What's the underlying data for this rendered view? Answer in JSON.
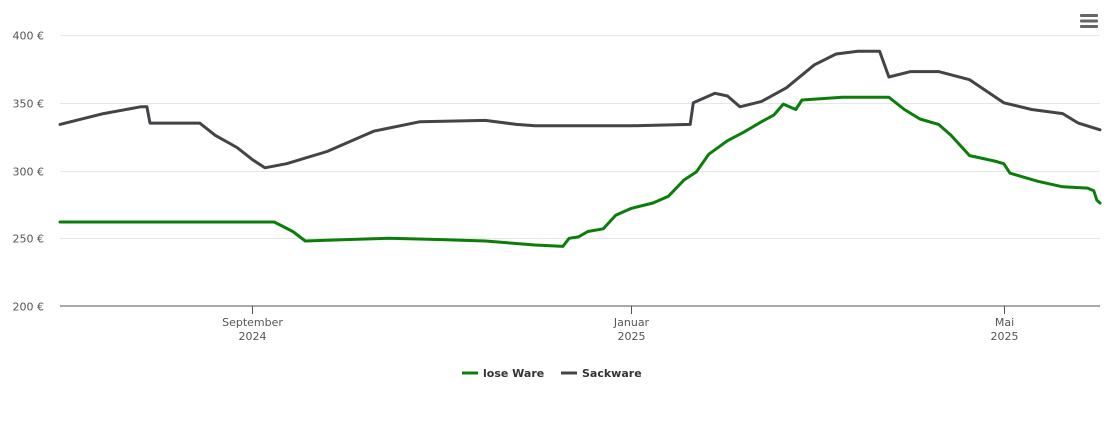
{
  "chart_data": {
    "type": "line",
    "ylim": [
      200,
      400
    ],
    "yticks": [
      200,
      250,
      300,
      350,
      400
    ],
    "ytick_labels": [
      "200 €",
      "250 €",
      "300 €",
      "350 €",
      "400 €"
    ],
    "xlim": [
      "2024-07-01",
      "2025-06-01"
    ],
    "xticks": [
      {
        "date": "2024-09-01",
        "month": "September",
        "year": "2024"
      },
      {
        "date": "2025-01-01",
        "month": "Januar",
        "year": "2025"
      },
      {
        "date": "2025-05-01",
        "month": "Mai",
        "year": "2025"
      }
    ],
    "grid": true,
    "legend_position": "bottom-center",
    "series": [
      {
        "name": "lose Ware",
        "color": "#0a7d0a",
        "points": [
          [
            "2024-07-01",
            262
          ],
          [
            "2024-08-01",
            262
          ],
          [
            "2024-09-01",
            262
          ],
          [
            "2024-09-08",
            262
          ],
          [
            "2024-09-14",
            255
          ],
          [
            "2024-09-18",
            248
          ],
          [
            "2024-10-01",
            249
          ],
          [
            "2024-10-15",
            250
          ],
          [
            "2024-11-01",
            249
          ],
          [
            "2024-11-15",
            248
          ],
          [
            "2024-12-01",
            245
          ],
          [
            "2024-12-10",
            244
          ],
          [
            "2024-12-12",
            250
          ],
          [
            "2024-12-15",
            251
          ],
          [
            "2024-12-18",
            255
          ],
          [
            "2024-12-23",
            257
          ],
          [
            "2024-12-27",
            267
          ],
          [
            "2025-01-01",
            272
          ],
          [
            "2025-01-08",
            276
          ],
          [
            "2025-01-13",
            281
          ],
          [
            "2025-01-18",
            293
          ],
          [
            "2025-01-22",
            299
          ],
          [
            "2025-01-26",
            312
          ],
          [
            "2025-02-01",
            322
          ],
          [
            "2025-02-06",
            328
          ],
          [
            "2025-02-12",
            336
          ],
          [
            "2025-02-16",
            341
          ],
          [
            "2025-02-19",
            349
          ],
          [
            "2025-02-23",
            345
          ],
          [
            "2025-02-25",
            352
          ],
          [
            "2025-03-10",
            354
          ],
          [
            "2025-03-25",
            354
          ],
          [
            "2025-03-30",
            345
          ],
          [
            "2025-04-04",
            338
          ],
          [
            "2025-04-10",
            334
          ],
          [
            "2025-04-14",
            326
          ],
          [
            "2025-04-20",
            311
          ],
          [
            "2025-04-28",
            307
          ],
          [
            "2025-05-01",
            305
          ],
          [
            "2025-05-03",
            298
          ],
          [
            "2025-05-12",
            292
          ],
          [
            "2025-05-20",
            288
          ],
          [
            "2025-05-28",
            287
          ],
          [
            "2025-05-30",
            285
          ],
          [
            "2025-05-31",
            278
          ],
          [
            "2025-06-01",
            276
          ]
        ]
      },
      {
        "name": "Sackware",
        "color": "#434348",
        "points": [
          [
            "2024-07-01",
            334
          ],
          [
            "2024-07-15",
            342
          ],
          [
            "2024-07-27",
            347
          ],
          [
            "2024-07-29",
            347
          ],
          [
            "2024-07-30",
            335
          ],
          [
            "2024-08-15",
            335
          ],
          [
            "2024-08-20",
            326
          ],
          [
            "2024-08-27",
            317
          ],
          [
            "2024-09-01",
            308
          ],
          [
            "2024-09-05",
            302
          ],
          [
            "2024-09-12",
            305
          ],
          [
            "2024-09-25",
            314
          ],
          [
            "2024-10-10",
            329
          ],
          [
            "2024-10-25",
            336
          ],
          [
            "2024-11-15",
            337
          ],
          [
            "2024-11-25",
            334
          ],
          [
            "2024-12-01",
            333
          ],
          [
            "2025-01-01",
            333
          ],
          [
            "2025-01-20",
            334
          ],
          [
            "2025-01-21",
            350
          ],
          [
            "2025-01-28",
            357
          ],
          [
            "2025-02-01",
            355
          ],
          [
            "2025-02-05",
            347
          ],
          [
            "2025-02-12",
            351
          ],
          [
            "2025-02-20",
            361
          ],
          [
            "2025-03-01",
            378
          ],
          [
            "2025-03-08",
            386
          ],
          [
            "2025-03-15",
            388
          ],
          [
            "2025-03-22",
            388
          ],
          [
            "2025-03-25",
            369
          ],
          [
            "2025-04-01",
            373
          ],
          [
            "2025-04-10",
            373
          ],
          [
            "2025-04-20",
            367
          ],
          [
            "2025-05-01",
            350
          ],
          [
            "2025-05-10",
            345
          ],
          [
            "2025-05-20",
            342
          ],
          [
            "2025-05-25",
            335
          ],
          [
            "2025-06-01",
            330
          ]
        ]
      }
    ]
  },
  "toolbar": {
    "menu_icon": "hamburger-menu-icon"
  }
}
